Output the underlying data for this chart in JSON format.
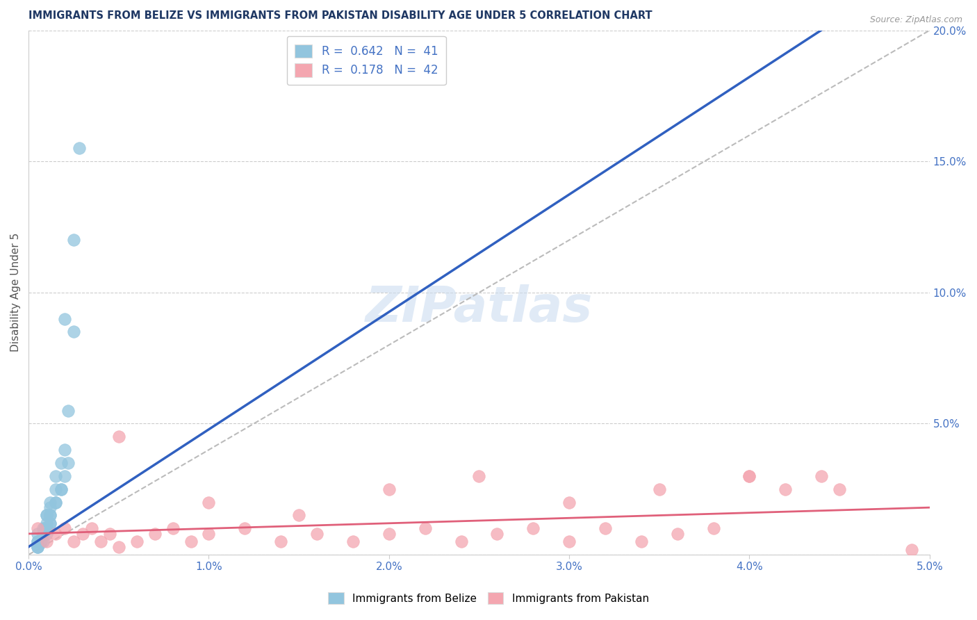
{
  "title": "IMMIGRANTS FROM BELIZE VS IMMIGRANTS FROM PAKISTAN DISABILITY AGE UNDER 5 CORRELATION CHART",
  "source": "Source: ZipAtlas.com",
  "ylabel": "Disability Age Under 5",
  "xlim": [
    0.0,
    0.05
  ],
  "ylim": [
    0.0,
    0.2
  ],
  "xticks": [
    0.0,
    0.01,
    0.02,
    0.03,
    0.04,
    0.05
  ],
  "xticklabels": [
    "0.0%",
    "1.0%",
    "2.0%",
    "3.0%",
    "4.0%",
    "5.0%"
  ],
  "yticks_right": [
    0.0,
    0.05,
    0.1,
    0.15,
    0.2
  ],
  "yticklabels_right": [
    "",
    "5.0%",
    "10.0%",
    "15.0%",
    "20.0%"
  ],
  "belize_color": "#92c5de",
  "pakistan_color": "#f4a6b0",
  "belize_line_color": "#3060c0",
  "pakistan_line_color": "#e0607a",
  "belize_R": 0.642,
  "belize_N": 41,
  "pakistan_R": 0.178,
  "pakistan_N": 42,
  "watermark": "ZIPatlas",
  "grid_color": "#cccccc",
  "title_color": "#1f3864",
  "axis_label_color": "#555555",
  "tick_color": "#4472c4",
  "diag_color": "#bbbbbb",
  "belize_scatter_x": [
    0.0005,
    0.0008,
    0.001,
    0.001,
    0.0012,
    0.0015,
    0.0018,
    0.002,
    0.0022,
    0.0005,
    0.0008,
    0.001,
    0.0012,
    0.0015,
    0.0005,
    0.0008,
    0.001,
    0.0012,
    0.0005,
    0.0007,
    0.0009,
    0.001,
    0.0012,
    0.0015,
    0.002,
    0.0005,
    0.0008,
    0.001,
    0.0012,
    0.0015,
    0.0018,
    0.0022,
    0.0025,
    0.0005,
    0.0008,
    0.001,
    0.0012,
    0.0018,
    0.002,
    0.0025,
    0.0028
  ],
  "belize_scatter_y": [
    0.005,
    0.008,
    0.01,
    0.015,
    0.012,
    0.02,
    0.025,
    0.03,
    0.035,
    0.008,
    0.01,
    0.015,
    0.02,
    0.03,
    0.005,
    0.008,
    0.01,
    0.018,
    0.003,
    0.005,
    0.01,
    0.012,
    0.015,
    0.025,
    0.04,
    0.003,
    0.005,
    0.008,
    0.015,
    0.02,
    0.025,
    0.055,
    0.12,
    0.003,
    0.008,
    0.01,
    0.012,
    0.035,
    0.09,
    0.085,
    0.155
  ],
  "pakistan_scatter_x": [
    0.0005,
    0.001,
    0.0015,
    0.002,
    0.0025,
    0.003,
    0.0035,
    0.004,
    0.0045,
    0.005,
    0.006,
    0.007,
    0.008,
    0.009,
    0.01,
    0.012,
    0.014,
    0.016,
    0.018,
    0.02,
    0.022,
    0.024,
    0.026,
    0.028,
    0.03,
    0.032,
    0.034,
    0.036,
    0.038,
    0.04,
    0.042,
    0.044,
    0.005,
    0.01,
    0.015,
    0.02,
    0.025,
    0.03,
    0.035,
    0.04,
    0.045,
    0.049
  ],
  "pakistan_scatter_y": [
    0.01,
    0.005,
    0.008,
    0.01,
    0.005,
    0.008,
    0.01,
    0.005,
    0.008,
    0.003,
    0.005,
    0.008,
    0.01,
    0.005,
    0.008,
    0.01,
    0.005,
    0.008,
    0.005,
    0.008,
    0.01,
    0.005,
    0.008,
    0.01,
    0.005,
    0.01,
    0.005,
    0.008,
    0.01,
    0.03,
    0.025,
    0.03,
    0.045,
    0.02,
    0.015,
    0.025,
    0.03,
    0.02,
    0.025,
    0.03,
    0.025,
    0.002
  ]
}
